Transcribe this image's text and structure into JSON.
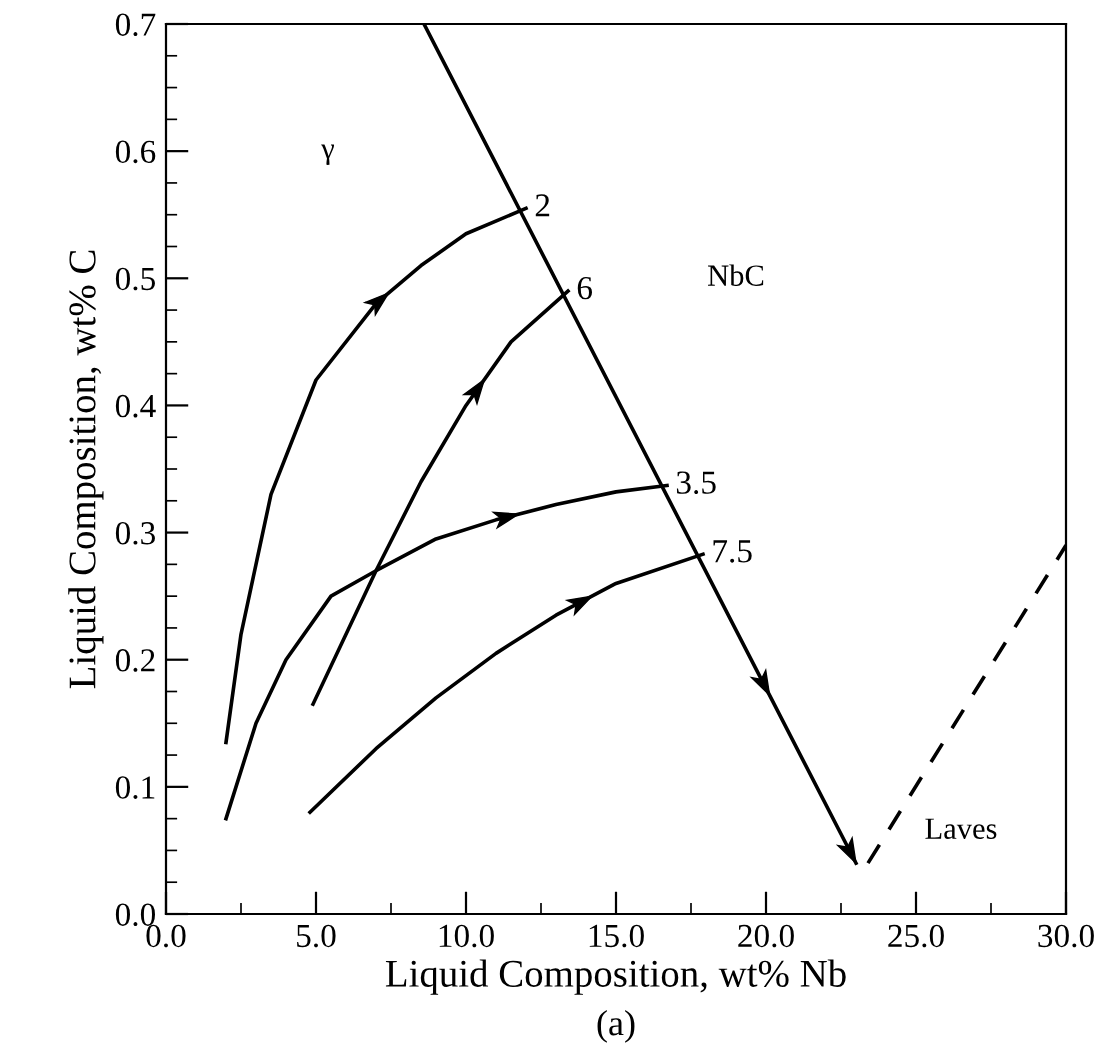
{
  "chart_data": {
    "type": "line",
    "xlabel": "Liquid Composition, wt% Nb",
    "ylabel": "Liquid Composition, wt% C",
    "xlim": [
      0.0,
      30.0
    ],
    "ylim": [
      0.0,
      0.7
    ],
    "xticks": [
      {
        "value": 0,
        "label": "0.0"
      },
      {
        "value": 5,
        "label": "5.0"
      },
      {
        "value": 10,
        "label": "10.0"
      },
      {
        "value": 15,
        "label": "15.0"
      },
      {
        "value": 20,
        "label": "20.0"
      },
      {
        "value": 25,
        "label": "25.0"
      },
      {
        "value": 30,
        "label": "30.0"
      }
    ],
    "yticks": [
      {
        "value": 0,
        "label": "0.0"
      },
      0.1,
      0.2,
      0.3,
      0.4,
      0.5,
      0.6,
      0.7
    ],
    "grid": false,
    "line_style": "solid",
    "series": [
      {
        "color": "#000000",
        "x": [
          2.0,
          2.5,
          3.5,
          5.0,
          7.0,
          8.5,
          10.0,
          12.0
        ],
        "values": [
          0.135,
          0.22,
          0.33,
          0.42,
          0.48,
          0.51,
          0.535,
          0.555
        ]
      },
      {
        "color": "#000000",
        "x": [
          4.9,
          6.0,
          7.0,
          8.5,
          10.0,
          11.5,
          13.4
        ],
        "values": [
          0.165,
          0.22,
          0.27,
          0.34,
          0.4,
          0.45,
          0.49
        ]
      },
      {
        "color": "#000000",
        "x": [
          2.0,
          3.0,
          4.0,
          5.5,
          7.0,
          9.0,
          11.0,
          13.0,
          15.0,
          16.7
        ],
        "values": [
          0.075,
          0.15,
          0.2,
          0.25,
          0.27,
          0.295,
          0.31,
          0.322,
          0.332,
          0.337
        ]
      },
      {
        "color": "#000000",
        "x": [
          4.8,
          7.0,
          9.0,
          11.0,
          13.0,
          15.0,
          17.9
        ],
        "values": [
          0.08,
          0.13,
          0.17,
          0.205,
          0.235,
          0.26,
          0.283
        ]
      },
      {
        "color": "#000000",
        "x": [
          8.6,
          23.0
        ],
        "values": [
          0.7,
          0.04
        ]
      },
      {
        "color": "#000000",
        "x": [
          23.4,
          30.0
        ],
        "values": [
          0.04,
          0.29
        ],
        "line_style": "dashed"
      }
    ],
    "annotations": [
      {
        "text": "2",
        "x": 12.0,
        "y": 0.555
      },
      {
        "text": "6",
        "x": 13.4,
        "y": 0.49
      },
      {
        "text": "3.5",
        "x": 16.7,
        "y": 0.337
      },
      {
        "text": "7.5",
        "x": 17.9,
        "y": 0.283
      },
      "γ",
      "NbC",
      "Laves",
      "(a)"
    ]
  }
}
